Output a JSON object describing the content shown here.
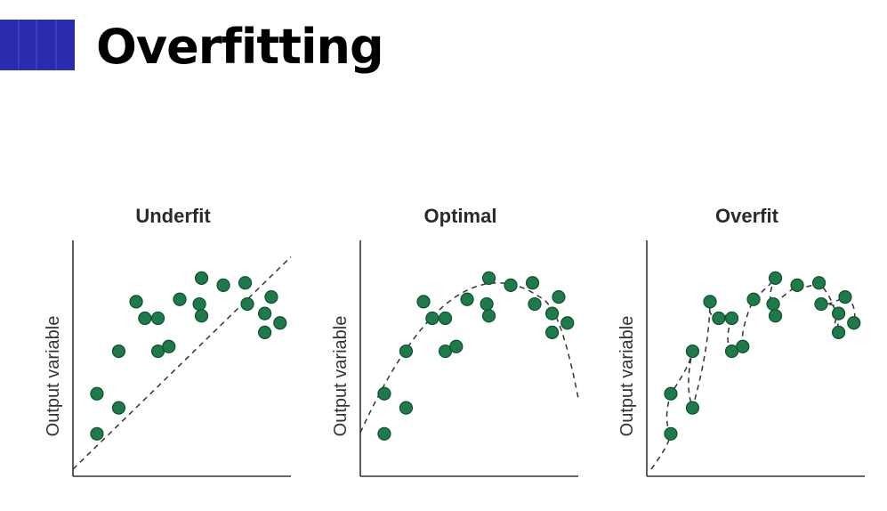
{
  "slide": {
    "title": "Overfitting",
    "accent_color": "#2b2bb0"
  },
  "chart_data": [
    {
      "type": "scatter",
      "title": "Underfit",
      "xlabel": "",
      "ylabel": "Output variable",
      "fit": "linear",
      "points": [
        [
          1.1,
          1.8
        ],
        [
          1.1,
          3.5
        ],
        [
          2.1,
          2.9
        ],
        [
          2.1,
          5.3
        ],
        [
          2.9,
          7.4
        ],
        [
          3.3,
          6.7
        ],
        [
          3.9,
          5.3
        ],
        [
          3.9,
          6.7
        ],
        [
          4.4,
          5.5
        ],
        [
          4.9,
          7.5
        ],
        [
          5.8,
          7.3
        ],
        [
          5.9,
          8.4
        ],
        [
          5.9,
          6.8
        ],
        [
          6.9,
          8.1
        ],
        [
          7.9,
          8.2
        ],
        [
          8.0,
          7.3
        ],
        [
          8.8,
          6.1
        ],
        [
          8.8,
          6.9
        ],
        [
          9.1,
          7.6
        ],
        [
          9.5,
          6.5
        ]
      ],
      "xlim": [
        0,
        10
      ],
      "ylim": [
        0,
        10
      ]
    },
    {
      "type": "scatter",
      "title": "Optimal",
      "xlabel": "",
      "ylabel": "Output variable",
      "fit": "curve",
      "points": [
        [
          1.1,
          1.8
        ],
        [
          1.1,
          3.5
        ],
        [
          2.1,
          2.9
        ],
        [
          2.1,
          5.3
        ],
        [
          2.9,
          7.4
        ],
        [
          3.3,
          6.7
        ],
        [
          3.9,
          5.3
        ],
        [
          3.9,
          6.7
        ],
        [
          4.4,
          5.5
        ],
        [
          4.9,
          7.5
        ],
        [
          5.8,
          7.3
        ],
        [
          5.9,
          8.4
        ],
        [
          5.9,
          6.8
        ],
        [
          6.9,
          8.1
        ],
        [
          7.9,
          8.2
        ],
        [
          8.0,
          7.3
        ],
        [
          8.8,
          6.1
        ],
        [
          8.8,
          6.9
        ],
        [
          9.1,
          7.6
        ],
        [
          9.5,
          6.5
        ]
      ],
      "xlim": [
        0,
        10
      ],
      "ylim": [
        0,
        10
      ]
    },
    {
      "type": "scatter",
      "title": "Overfit",
      "xlabel": "",
      "ylabel": "Output variable",
      "fit": "through-every-point",
      "points": [
        [
          1.1,
          1.8
        ],
        [
          1.1,
          3.5
        ],
        [
          2.1,
          2.9
        ],
        [
          2.1,
          5.3
        ],
        [
          2.9,
          7.4
        ],
        [
          3.3,
          6.7
        ],
        [
          3.9,
          5.3
        ],
        [
          3.9,
          6.7
        ],
        [
          4.4,
          5.5
        ],
        [
          4.9,
          7.5
        ],
        [
          5.8,
          7.3
        ],
        [
          5.9,
          8.4
        ],
        [
          5.9,
          6.8
        ],
        [
          6.9,
          8.1
        ],
        [
          7.9,
          8.2
        ],
        [
          8.0,
          7.3
        ],
        [
          8.8,
          6.1
        ],
        [
          8.8,
          6.9
        ],
        [
          9.1,
          7.6
        ],
        [
          9.5,
          6.5
        ]
      ],
      "xlim": [
        0,
        10
      ],
      "ylim": [
        0,
        10
      ]
    }
  ]
}
